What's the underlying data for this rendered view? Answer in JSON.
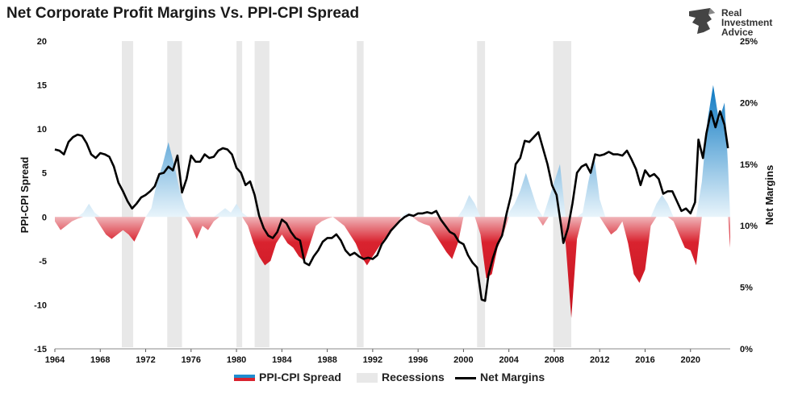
{
  "title": "Net Corporate Profit Margins Vs. PPI-CPI Spread",
  "brand": {
    "line1": "Real",
    "line2": "Investment",
    "line3": "Advice"
  },
  "colors": {
    "positive": "#1f8dd0",
    "negative": "#d9232f",
    "recession": "#e8e8e8",
    "line": "#000000"
  },
  "legend": {
    "spread": "PPI-CPI Spread",
    "recessions": "Recessions",
    "margins": "Net Margins"
  },
  "chart_data": {
    "type": "area",
    "title": "Net Corporate Profit Margins Vs. PPI-CPI Spread",
    "ylabel": "PPI-CPI Spread",
    "y2label": "Net Margins",
    "xlim": [
      1964,
      2023.5
    ],
    "ylim": [
      -15,
      20
    ],
    "y2lim": [
      0,
      25
    ],
    "x_ticks": [
      "1964",
      "1968",
      "1972",
      "1976",
      "1980",
      "1984",
      "1988",
      "1992",
      "1996",
      "2000",
      "2004",
      "2008",
      "2012",
      "2016",
      "2020"
    ],
    "y_ticks": [
      "20",
      "15",
      "10",
      "5",
      "0",
      "-5",
      "-10",
      "-15"
    ],
    "y2_ticks": [
      "25%",
      "20%",
      "15%",
      "10%",
      "5%",
      "0%"
    ],
    "recessions": [
      [
        1969.9,
        1970.9
      ],
      [
        1973.9,
        1975.2
      ],
      [
        1980.0,
        1980.5
      ],
      [
        1981.6,
        1982.9
      ],
      [
        1990.6,
        1991.2
      ],
      [
        2001.2,
        2001.9
      ],
      [
        2007.9,
        2009.5
      ]
    ],
    "series": [
      {
        "name": "PPI-CPI Spread",
        "points": [
          [
            1964.0,
            -0.5
          ],
          [
            1964.5,
            -1.5
          ],
          [
            1965.0,
            -1.0
          ],
          [
            1965.5,
            -0.5
          ],
          [
            1966.0,
            -0.2
          ],
          [
            1966.5,
            0.5
          ],
          [
            1967.0,
            1.5
          ],
          [
            1967.5,
            0.5
          ],
          [
            1968.0,
            -1.0
          ],
          [
            1968.5,
            -2.0
          ],
          [
            1969.0,
            -2.5
          ],
          [
            1969.5,
            -2.0
          ],
          [
            1970.0,
            -1.5
          ],
          [
            1970.5,
            -2.0
          ],
          [
            1971.0,
            -2.8
          ],
          [
            1971.5,
            -1.5
          ],
          [
            1972.0,
            0.0
          ],
          [
            1972.5,
            1.0
          ],
          [
            1973.0,
            4.0
          ],
          [
            1973.5,
            6.0
          ],
          [
            1974.0,
            8.5
          ],
          [
            1974.5,
            6.0
          ],
          [
            1975.0,
            3.0
          ],
          [
            1975.5,
            1.0
          ],
          [
            1976.0,
            -1.0
          ],
          [
            1976.5,
            -2.5
          ],
          [
            1977.0,
            -1.0
          ],
          [
            1977.5,
            -1.5
          ],
          [
            1978.0,
            -0.5
          ],
          [
            1978.5,
            0.5
          ],
          [
            1979.0,
            1.0
          ],
          [
            1979.5,
            0.5
          ],
          [
            1980.0,
            1.5
          ],
          [
            1980.5,
            0.5
          ],
          [
            1981.0,
            -1.0
          ],
          [
            1981.5,
            -3.0
          ],
          [
            1982.0,
            -4.5
          ],
          [
            1982.5,
            -5.5
          ],
          [
            1983.0,
            -5.0
          ],
          [
            1983.5,
            -3.0
          ],
          [
            1984.0,
            -2.0
          ],
          [
            1984.5,
            -3.0
          ],
          [
            1985.0,
            -3.5
          ],
          [
            1985.5,
            -4.5
          ],
          [
            1986.0,
            -5.0
          ],
          [
            1986.5,
            -3.0
          ],
          [
            1987.0,
            -1.0
          ],
          [
            1987.5,
            -0.5
          ],
          [
            1988.0,
            -0.2
          ],
          [
            1988.5,
            0.0
          ],
          [
            1989.0,
            -0.5
          ],
          [
            1989.5,
            -1.0
          ],
          [
            1990.0,
            -2.0
          ],
          [
            1990.5,
            -3.0
          ],
          [
            1991.0,
            -4.5
          ],
          [
            1991.5,
            -5.5
          ],
          [
            1992.0,
            -4.5
          ],
          [
            1992.5,
            -3.5
          ],
          [
            1993.0,
            -2.5
          ],
          [
            1993.5,
            -2.0
          ],
          [
            1994.0,
            -1.0
          ],
          [
            1994.5,
            0.0
          ],
          [
            1995.0,
            0.5
          ],
          [
            1995.5,
            0.0
          ],
          [
            1996.0,
            -0.5
          ],
          [
            1996.5,
            -0.8
          ],
          [
            1997.0,
            -1.0
          ],
          [
            1997.5,
            -2.0
          ],
          [
            1998.0,
            -3.0
          ],
          [
            1998.5,
            -4.0
          ],
          [
            1999.0,
            -4.8
          ],
          [
            1999.5,
            -3.0
          ],
          [
            2000.0,
            1.0
          ],
          [
            2000.5,
            2.5
          ],
          [
            2001.0,
            1.5
          ],
          [
            2001.5,
            -2.0
          ],
          [
            2002.0,
            -7.0
          ],
          [
            2002.5,
            -6.5
          ],
          [
            2003.0,
            -3.5
          ],
          [
            2003.5,
            -2.0
          ],
          [
            2004.0,
            0.5
          ],
          [
            2004.5,
            1.5
          ],
          [
            2005.0,
            3.0
          ],
          [
            2005.5,
            5.0
          ],
          [
            2006.0,
            3.0
          ],
          [
            2006.5,
            1.0
          ],
          [
            2007.0,
            -1.0
          ],
          [
            2007.5,
            2.0
          ],
          [
            2008.0,
            4.0
          ],
          [
            2008.5,
            6.0
          ],
          [
            2009.0,
            -3.0
          ],
          [
            2009.5,
            -11.5
          ],
          [
            2010.0,
            -2.5
          ],
          [
            2010.5,
            0.5
          ],
          [
            2011.0,
            4.0
          ],
          [
            2011.5,
            7.0
          ],
          [
            2012.0,
            2.0
          ],
          [
            2012.5,
            -1.0
          ],
          [
            2013.0,
            -2.0
          ],
          [
            2013.5,
            -1.5
          ],
          [
            2014.0,
            -0.5
          ],
          [
            2014.5,
            -3.0
          ],
          [
            2015.0,
            -6.5
          ],
          [
            2015.5,
            -7.5
          ],
          [
            2016.0,
            -6.0
          ],
          [
            2016.5,
            -1.0
          ],
          [
            2017.0,
            1.5
          ],
          [
            2017.5,
            2.5
          ],
          [
            2018.0,
            1.5
          ],
          [
            2018.5,
            -0.5
          ],
          [
            2019.0,
            -2.0
          ],
          [
            2019.5,
            -3.5
          ],
          [
            2020.0,
            -3.8
          ],
          [
            2020.5,
            -5.5
          ],
          [
            2021.0,
            4.0
          ],
          [
            2021.5,
            11.0
          ],
          [
            2022.0,
            15.0
          ],
          [
            2022.5,
            11.0
          ],
          [
            2023.0,
            13.0
          ],
          [
            2023.3,
            6.0
          ],
          [
            2023.5,
            -3.5
          ]
        ]
      },
      {
        "name": "Net Margins",
        "points": [
          [
            1964.0,
            16.2
          ],
          [
            1964.4,
            16.1
          ],
          [
            1964.8,
            15.8
          ],
          [
            1965.2,
            16.8
          ],
          [
            1965.6,
            17.2
          ],
          [
            1966.0,
            17.4
          ],
          [
            1966.4,
            17.3
          ],
          [
            1966.8,
            16.7
          ],
          [
            1967.2,
            15.8
          ],
          [
            1967.6,
            15.5
          ],
          [
            1968.0,
            15.9
          ],
          [
            1968.4,
            15.8
          ],
          [
            1968.8,
            15.6
          ],
          [
            1969.2,
            14.8
          ],
          [
            1969.6,
            13.5
          ],
          [
            1970.0,
            12.8
          ],
          [
            1970.4,
            12.0
          ],
          [
            1970.8,
            11.4
          ],
          [
            1971.2,
            11.8
          ],
          [
            1971.6,
            12.3
          ],
          [
            1972.0,
            12.5
          ],
          [
            1972.4,
            12.8
          ],
          [
            1972.8,
            13.2
          ],
          [
            1973.2,
            14.2
          ],
          [
            1973.6,
            14.3
          ],
          [
            1974.0,
            14.8
          ],
          [
            1974.4,
            14.5
          ],
          [
            1974.8,
            15.7
          ],
          [
            1975.2,
            12.7
          ],
          [
            1975.6,
            13.8
          ],
          [
            1976.0,
            15.7
          ],
          [
            1976.4,
            15.2
          ],
          [
            1976.8,
            15.2
          ],
          [
            1977.2,
            15.8
          ],
          [
            1977.6,
            15.5
          ],
          [
            1978.0,
            15.6
          ],
          [
            1978.4,
            16.1
          ],
          [
            1978.8,
            16.3
          ],
          [
            1979.2,
            16.2
          ],
          [
            1979.6,
            15.8
          ],
          [
            1980.0,
            14.7
          ],
          [
            1980.4,
            14.3
          ],
          [
            1980.8,
            13.3
          ],
          [
            1981.2,
            13.6
          ],
          [
            1981.6,
            12.5
          ],
          [
            1982.0,
            10.8
          ],
          [
            1982.4,
            9.8
          ],
          [
            1982.8,
            9.2
          ],
          [
            1983.2,
            9.0
          ],
          [
            1983.6,
            9.5
          ],
          [
            1984.0,
            10.5
          ],
          [
            1984.4,
            10.2
          ],
          [
            1984.8,
            9.5
          ],
          [
            1985.2,
            9.0
          ],
          [
            1985.6,
            8.8
          ],
          [
            1986.0,
            7.0
          ],
          [
            1986.4,
            6.8
          ],
          [
            1986.8,
            7.5
          ],
          [
            1987.2,
            8.0
          ],
          [
            1987.6,
            8.7
          ],
          [
            1988.0,
            9.0
          ],
          [
            1988.4,
            9.0
          ],
          [
            1988.8,
            9.3
          ],
          [
            1989.2,
            8.8
          ],
          [
            1989.6,
            8.0
          ],
          [
            1990.0,
            7.6
          ],
          [
            1990.4,
            7.8
          ],
          [
            1990.8,
            7.5
          ],
          [
            1991.2,
            7.3
          ],
          [
            1991.6,
            7.4
          ],
          [
            1992.0,
            7.3
          ],
          [
            1992.4,
            7.6
          ],
          [
            1992.8,
            8.5
          ],
          [
            1993.2,
            9.0
          ],
          [
            1993.6,
            9.6
          ],
          [
            1994.0,
            10.0
          ],
          [
            1994.4,
            10.4
          ],
          [
            1994.8,
            10.7
          ],
          [
            1995.2,
            10.9
          ],
          [
            1995.6,
            10.8
          ],
          [
            1996.0,
            11.0
          ],
          [
            1996.4,
            11.0
          ],
          [
            1996.8,
            11.1
          ],
          [
            1997.2,
            11.0
          ],
          [
            1997.6,
            11.2
          ],
          [
            1998.0,
            10.5
          ],
          [
            1998.4,
            10.0
          ],
          [
            1998.8,
            9.5
          ],
          [
            1999.2,
            9.3
          ],
          [
            1999.6,
            8.7
          ],
          [
            2000.0,
            8.5
          ],
          [
            2000.4,
            7.6
          ],
          [
            2000.8,
            7.0
          ],
          [
            2001.2,
            6.6
          ],
          [
            2001.6,
            4.0
          ],
          [
            2001.9,
            3.9
          ],
          [
            2002.2,
            6.0
          ],
          [
            2002.6,
            7.4
          ],
          [
            2003.0,
            8.5
          ],
          [
            2003.4,
            9.2
          ],
          [
            2003.8,
            11.0
          ],
          [
            2004.2,
            12.5
          ],
          [
            2004.6,
            15.0
          ],
          [
            2005.0,
            15.5
          ],
          [
            2005.4,
            16.9
          ],
          [
            2005.8,
            16.8
          ],
          [
            2006.2,
            17.2
          ],
          [
            2006.6,
            17.6
          ],
          [
            2007.0,
            16.3
          ],
          [
            2007.4,
            15.0
          ],
          [
            2007.8,
            13.3
          ],
          [
            2008.2,
            12.5
          ],
          [
            2008.6,
            10.0
          ],
          [
            2008.8,
            8.6
          ],
          [
            2009.2,
            9.8
          ],
          [
            2009.6,
            11.8
          ],
          [
            2010.0,
            14.3
          ],
          [
            2010.4,
            14.8
          ],
          [
            2010.8,
            15.0
          ],
          [
            2011.2,
            14.3
          ],
          [
            2011.6,
            15.8
          ],
          [
            2012.0,
            15.7
          ],
          [
            2012.4,
            15.8
          ],
          [
            2012.8,
            16.0
          ],
          [
            2013.2,
            15.8
          ],
          [
            2013.6,
            15.8
          ],
          [
            2014.0,
            15.7
          ],
          [
            2014.4,
            16.1
          ],
          [
            2014.8,
            15.4
          ],
          [
            2015.2,
            14.6
          ],
          [
            2015.6,
            13.3
          ],
          [
            2016.0,
            14.5
          ],
          [
            2016.4,
            14.0
          ],
          [
            2016.8,
            14.2
          ],
          [
            2017.2,
            13.8
          ],
          [
            2017.6,
            12.6
          ],
          [
            2018.0,
            12.8
          ],
          [
            2018.4,
            12.8
          ],
          [
            2018.8,
            12.0
          ],
          [
            2019.2,
            11.2
          ],
          [
            2019.6,
            11.4
          ],
          [
            2020.0,
            11.0
          ],
          [
            2020.4,
            11.9
          ],
          [
            2020.7,
            17.0
          ],
          [
            2021.1,
            15.5
          ],
          [
            2021.4,
            17.5
          ],
          [
            2021.8,
            19.3
          ],
          [
            2022.2,
            18.0
          ],
          [
            2022.6,
            19.3
          ],
          [
            2023.0,
            18.2
          ],
          [
            2023.3,
            16.3
          ]
        ]
      }
    ]
  }
}
